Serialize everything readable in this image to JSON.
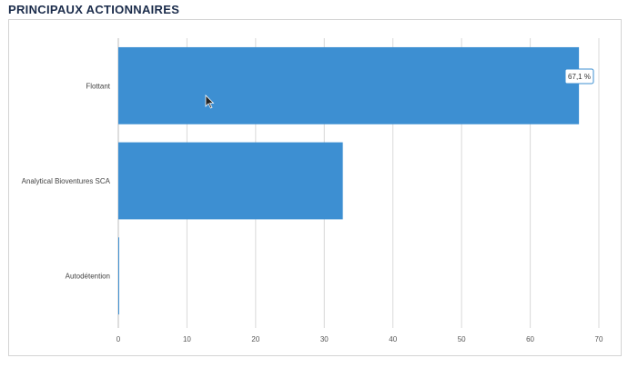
{
  "section": {
    "title": "PRINCIPAUX ACTIONNAIRES"
  },
  "tooltip": {
    "text": "67,1 %"
  },
  "colors": {
    "bar": "#3d8fd2",
    "grid": "#d9d9d9",
    "title": "#1b2c4b"
  },
  "chart_data": {
    "type": "bar",
    "orientation": "horizontal",
    "categories": [
      "Flottant",
      "Analytical Bioventures SCA",
      "Autodétention"
    ],
    "values": [
      67.1,
      32.7,
      0.1
    ],
    "xlim": [
      0,
      70
    ],
    "xticks": [
      0,
      10,
      20,
      30,
      40,
      50,
      60,
      70
    ],
    "grid": true,
    "xlabel": "",
    "ylabel": ""
  }
}
